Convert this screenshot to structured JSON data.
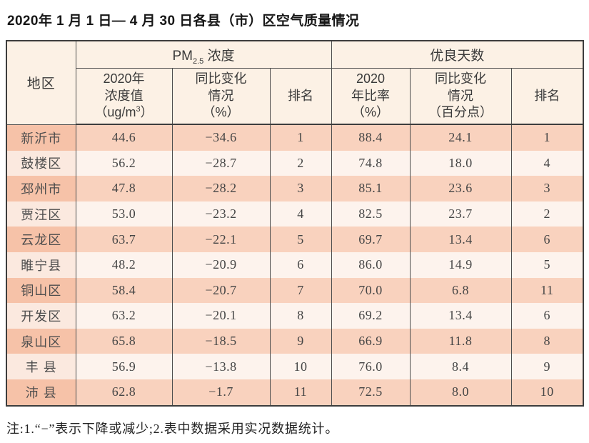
{
  "title": "2020年 1 月 1 日— 4 月 30 日各县（市）区空气质量情况",
  "footnote": "注:1.“−”表示下降或减少;2.表中数据采用实况数据统计。",
  "table": {
    "header": {
      "region": "地区",
      "pm_group": {
        "prefix": "PM",
        "sub": "2.5",
        "suffix": " 浓度"
      },
      "good_group": "优良天数",
      "pm_value": {
        "line1": "2020年",
        "line2": "浓度值",
        "paren_open": "（ug/m",
        "sup": "3",
        "paren_close": "）"
      },
      "pm_change": "同比变化\n情况\n（%）",
      "pm_rank": "排名",
      "good_rate": "2020\n年比率\n（%）",
      "good_change": "同比变化\n情况\n（百分点）",
      "good_rank": "排名"
    },
    "rows": [
      {
        "region": "新沂市",
        "pm_value": "44.6",
        "pm_change": "−34.6",
        "pm_rank": "1",
        "good_rate": "88.4",
        "good_change": "24.1",
        "good_rank": "1"
      },
      {
        "region": "鼓楼区",
        "pm_value": "56.2",
        "pm_change": "−28.7",
        "pm_rank": "2",
        "good_rate": "74.8",
        "good_change": "18.0",
        "good_rank": "4"
      },
      {
        "region": "邳州市",
        "pm_value": "47.8",
        "pm_change": "−28.2",
        "pm_rank": "3",
        "good_rate": "85.1",
        "good_change": "23.6",
        "good_rank": "3"
      },
      {
        "region": "贾汪区",
        "pm_value": "53.0",
        "pm_change": "−23.2",
        "pm_rank": "4",
        "good_rate": "82.5",
        "good_change": "23.7",
        "good_rank": "2"
      },
      {
        "region": "云龙区",
        "pm_value": "63.7",
        "pm_change": "−22.1",
        "pm_rank": "5",
        "good_rate": "69.7",
        "good_change": "13.4",
        "good_rank": "6"
      },
      {
        "region": "睢宁县",
        "pm_value": "48.2",
        "pm_change": "−20.9",
        "pm_rank": "6",
        "good_rate": "86.0",
        "good_change": "14.9",
        "good_rank": "5"
      },
      {
        "region": "铜山区",
        "pm_value": "58.4",
        "pm_change": "−20.7",
        "pm_rank": "7",
        "good_rate": "70.0",
        "good_change": "6.8",
        "good_rank": "11"
      },
      {
        "region": "开发区",
        "pm_value": "63.2",
        "pm_change": "−20.1",
        "pm_rank": "8",
        "good_rate": "69.2",
        "good_change": "13.4",
        "good_rank": "6"
      },
      {
        "region": "泉山区",
        "pm_value": "65.8",
        "pm_change": "−18.5",
        "pm_rank": "9",
        "good_rate": "66.9",
        "good_change": "11.8",
        "good_rank": "8"
      },
      {
        "region": "丰 县",
        "pm_value": "56.9",
        "pm_change": "−13.8",
        "pm_rank": "10",
        "good_rate": "76.0",
        "good_change": "8.4",
        "good_rank": "9"
      },
      {
        "region": "沛 县",
        "pm_value": "62.8",
        "pm_change": "−1.7",
        "pm_rank": "11",
        "good_rate": "72.5",
        "good_change": "8.0",
        "good_rank": "10"
      }
    ]
  },
  "chart_data": {
    "type": "table",
    "title": "2020年1月1日—4月30日各县（市）区空气质量情况",
    "column_groups": [
      "PM2.5浓度",
      "优良天数"
    ],
    "columns": [
      "地区",
      "2020年浓度值（ug/m3）",
      "同比变化情况（%）",
      "排名",
      "2020年比率（%）",
      "同比变化情况（百分点）",
      "排名"
    ],
    "rows": [
      [
        "新沂市",
        44.6,
        -34.6,
        1,
        88.4,
        24.1,
        1
      ],
      [
        "鼓楼区",
        56.2,
        -28.7,
        2,
        74.8,
        18.0,
        4
      ],
      [
        "邳州市",
        47.8,
        -28.2,
        3,
        85.1,
        23.6,
        3
      ],
      [
        "贾汪区",
        53.0,
        -23.2,
        4,
        82.5,
        23.7,
        2
      ],
      [
        "云龙区",
        63.7,
        -22.1,
        5,
        69.7,
        13.4,
        6
      ],
      [
        "睢宁县",
        48.2,
        -20.9,
        6,
        86.0,
        14.9,
        5
      ],
      [
        "铜山区",
        58.4,
        -20.7,
        7,
        70.0,
        6.8,
        11
      ],
      [
        "开发区",
        63.2,
        -20.1,
        8,
        69.2,
        13.4,
        6
      ],
      [
        "泉山区",
        65.8,
        -18.5,
        9,
        66.9,
        11.8,
        8
      ],
      [
        "丰县",
        56.9,
        -13.8,
        10,
        76.0,
        8.4,
        9
      ],
      [
        "沛县",
        62.8,
        -1.7,
        11,
        72.5,
        8.0,
        10
      ]
    ],
    "note": "注:1.“−”表示下降或减少;2.表中数据采用实况数据统计。"
  },
  "colors": {
    "header_bg": "#fcf1e5",
    "odd_row_bg": "#f9d2be",
    "odd_row_region_bg": "#f6c2a8",
    "even_row_bg": "#fdf3ed",
    "even_row_region_bg": "#fbe9df",
    "border": "#4d4d4d"
  }
}
